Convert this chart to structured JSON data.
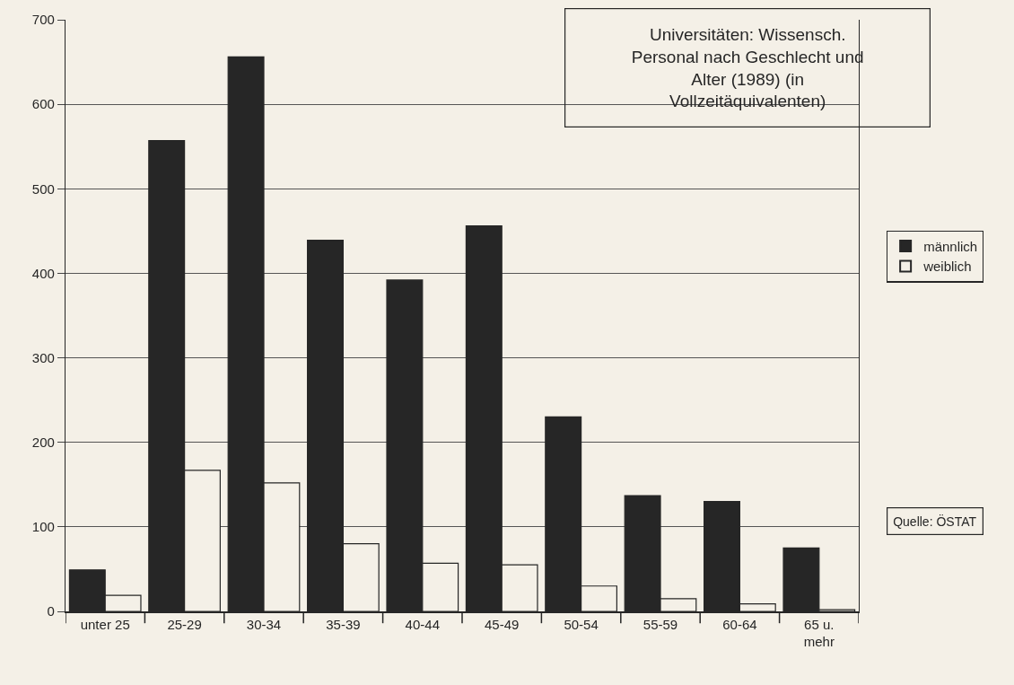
{
  "chart_data": {
    "type": "bar",
    "title": "Universitäten: Wissensch. Personal nach Geschlecht und Alter (1989) (in Vollzeitäquivalenten)",
    "categories": [
      "unter 25",
      "25-29",
      "30-34",
      "35-39",
      "40-44",
      "45-49",
      "50-54",
      "55-59",
      "60-64",
      "65 u. mehr"
    ],
    "series": [
      {
        "name": "männlich",
        "color": "#262626",
        "values": [
          49,
          557,
          656,
          439,
          392,
          456,
          230,
          137,
          130,
          75
        ]
      },
      {
        "name": "weiblich",
        "color": "#f4f0e7",
        "values": [
          19,
          167,
          152,
          80,
          57,
          55,
          30,
          15,
          9,
          2
        ]
      }
    ],
    "ylim": [
      0,
      700
    ],
    "yticks": [
      0,
      100,
      200,
      300,
      400,
      500,
      600,
      700
    ],
    "grid": "y",
    "legend": "right",
    "annotations": [
      "Quelle: ÖSTAT"
    ]
  }
}
